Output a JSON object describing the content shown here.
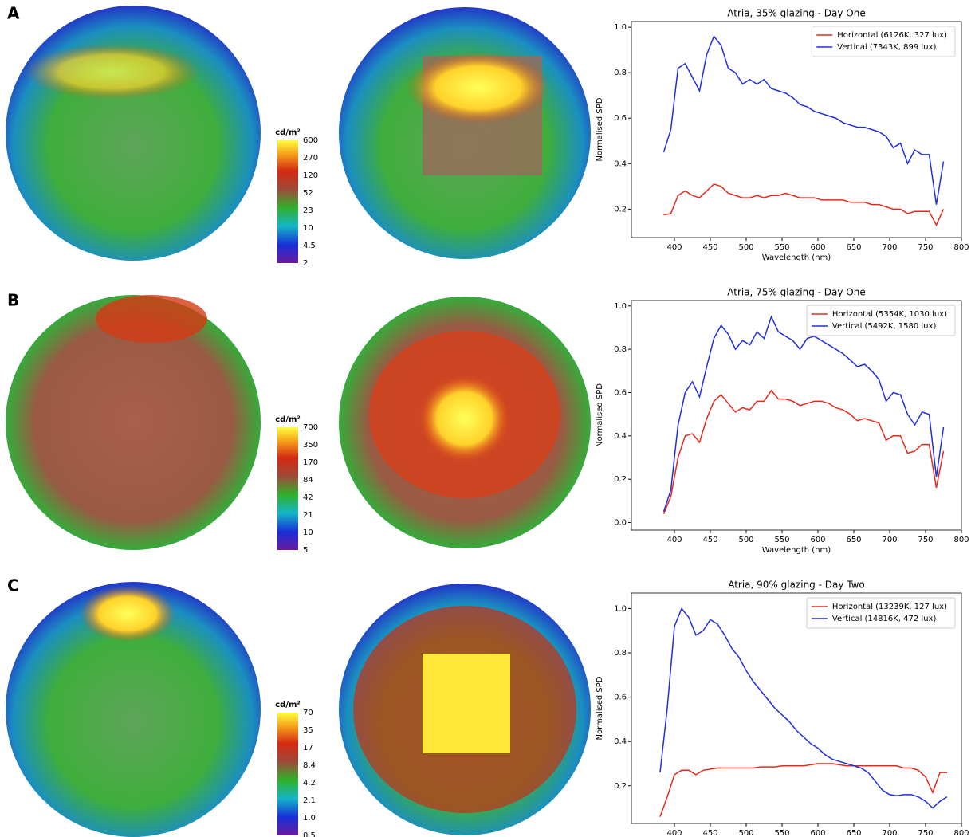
{
  "panels": [
    {
      "label": "A",
      "colorbar": {
        "unit": "cd/m²",
        "ticks": [
          "600",
          "270",
          "120",
          "52",
          "23",
          "10",
          "4.5",
          "2"
        ]
      }
    },
    {
      "label": "B",
      "colorbar": {
        "unit": "cd/m²",
        "ticks": [
          "700",
          "350",
          "170",
          "84",
          "42",
          "21",
          "10",
          "5"
        ]
      }
    },
    {
      "label": "C",
      "colorbar": {
        "unit": "cd/m²",
        "ticks": [
          "70",
          "35",
          "17",
          "8.4",
          "4.2",
          "2.1",
          "1.0",
          "0.5"
        ]
      }
    }
  ],
  "chart_data": [
    {
      "type": "line",
      "title": "Atria, 35% glazing - Day One",
      "x_label": "Wavelength (nm)",
      "y_label": "Normalised SPD",
      "legend": "upper right",
      "xlim": [
        340,
        800
      ],
      "ylim": [
        0.075,
        1.025
      ],
      "xticks": [
        400,
        450,
        500,
        550,
        600,
        650,
        700,
        750,
        800
      ],
      "yticks": [
        0.2,
        0.4,
        0.6,
        0.8,
        {
          "value": 1,
          "label": "1.0"
        }
      ],
      "x": [
        385,
        395,
        405,
        415,
        425,
        435,
        445,
        455,
        465,
        475,
        485,
        495,
        505,
        515,
        525,
        535,
        545,
        555,
        565,
        575,
        585,
        595,
        605,
        615,
        625,
        635,
        645,
        655,
        665,
        675,
        685,
        695,
        705,
        715,
        725,
        735,
        745,
        755,
        765,
        775
      ],
      "series": [
        {
          "name": "Horizontal (6126K, 327 lux)",
          "color": "#e8291c",
          "values": [
            0.175,
            0.18,
            0.26,
            0.28,
            0.26,
            0.25,
            0.28,
            0.31,
            0.3,
            0.27,
            0.26,
            0.25,
            0.25,
            0.26,
            0.25,
            0.26,
            0.26,
            0.27,
            0.26,
            0.25,
            0.25,
            0.25,
            0.24,
            0.24,
            0.24,
            0.24,
            0.23,
            0.23,
            0.23,
            0.22,
            0.22,
            0.21,
            0.2,
            0.2,
            0.18,
            0.19,
            0.19,
            0.19,
            0.13,
            0.2
          ]
        },
        {
          "name": "Vertical (7343K, 899 lux)",
          "color": "#1f2fe0",
          "values": [
            0.45,
            0.55,
            0.82,
            0.84,
            0.78,
            0.72,
            0.88,
            0.96,
            0.92,
            0.82,
            0.8,
            0.75,
            0.77,
            0.75,
            0.77,
            0.73,
            0.72,
            0.71,
            0.69,
            0.66,
            0.65,
            0.63,
            0.62,
            0.61,
            0.6,
            0.58,
            0.57,
            0.56,
            0.56,
            0.55,
            0.54,
            0.52,
            0.47,
            0.49,
            0.4,
            0.46,
            0.44,
            0.44,
            0.22,
            0.41
          ]
        }
      ]
    },
    {
      "type": "line",
      "title": "Atria, 75% glazing - Day One",
      "x_label": "Wavelength (nm)",
      "y_label": "Normalised SPD",
      "legend": "upper right",
      "xlim": [
        340,
        800
      ],
      "ylim": [
        -0.035,
        1.025
      ],
      "xticks": [
        400,
        450,
        500,
        550,
        600,
        650,
        700,
        750,
        800
      ],
      "yticks": [
        {
          "value": 0,
          "label": "0.0"
        },
        0.2,
        0.4,
        0.6,
        0.8,
        {
          "value": 1,
          "label": "1.0"
        }
      ],
      "x": [
        385,
        395,
        405,
        415,
        425,
        435,
        445,
        455,
        465,
        475,
        485,
        495,
        505,
        515,
        525,
        535,
        545,
        555,
        565,
        575,
        585,
        595,
        605,
        615,
        625,
        635,
        645,
        655,
        665,
        675,
        685,
        695,
        705,
        715,
        725,
        735,
        745,
        755,
        765,
        775
      ],
      "series": [
        {
          "name": "Horizontal (5354K, 1030 lux)",
          "color": "#e8291c",
          "values": [
            0.04,
            0.12,
            0.3,
            0.4,
            0.41,
            0.37,
            0.48,
            0.56,
            0.59,
            0.55,
            0.51,
            0.53,
            0.52,
            0.56,
            0.56,
            0.61,
            0.57,
            0.57,
            0.56,
            0.54,
            0.55,
            0.56,
            0.56,
            0.55,
            0.53,
            0.52,
            0.5,
            0.47,
            0.48,
            0.47,
            0.46,
            0.38,
            0.4,
            0.4,
            0.32,
            0.33,
            0.36,
            0.36,
            0.16,
            0.33
          ]
        },
        {
          "name": "Vertical (5492K, 1580 lux)",
          "color": "#1f2fe0",
          "values": [
            0.05,
            0.15,
            0.45,
            0.6,
            0.65,
            0.58,
            0.72,
            0.85,
            0.91,
            0.87,
            0.8,
            0.84,
            0.82,
            0.88,
            0.85,
            0.95,
            0.88,
            0.86,
            0.84,
            0.8,
            0.85,
            0.86,
            0.84,
            0.82,
            0.8,
            0.78,
            0.75,
            0.72,
            0.73,
            0.7,
            0.66,
            0.56,
            0.6,
            0.59,
            0.5,
            0.45,
            0.51,
            0.5,
            0.21,
            0.44
          ]
        }
      ]
    },
    {
      "type": "line",
      "title": "Atria, 90% glazing - Day Two",
      "x_label": "Wavelength (nm)",
      "y_label": "Normalised SPD",
      "legend": "upper right",
      "xlim": [
        340,
        800
      ],
      "ylim": [
        0.03,
        1.07
      ],
      "xticks": [
        400,
        450,
        500,
        550,
        600,
        650,
        700,
        750,
        800
      ],
      "yticks": [
        0.2,
        0.4,
        0.6,
        0.8,
        {
          "value": 1,
          "label": "1.0"
        }
      ],
      "x": [
        380,
        390,
        400,
        410,
        420,
        430,
        440,
        450,
        460,
        470,
        480,
        490,
        500,
        510,
        520,
        530,
        540,
        550,
        560,
        570,
        580,
        590,
        600,
        610,
        620,
        630,
        640,
        650,
        660,
        670,
        680,
        690,
        700,
        710,
        720,
        730,
        740,
        750,
        760,
        770,
        780
      ],
      "series": [
        {
          "name": "Horizontal (13239K, 127 lux)",
          "color": "#e8291c",
          "values": [
            0.06,
            0.15,
            0.25,
            0.27,
            0.27,
            0.25,
            0.27,
            0.275,
            0.28,
            0.28,
            0.28,
            0.28,
            0.28,
            0.28,
            0.285,
            0.285,
            0.285,
            0.29,
            0.29,
            0.29,
            0.29,
            0.295,
            0.3,
            0.3,
            0.3,
            0.295,
            0.29,
            0.29,
            0.29,
            0.29,
            0.29,
            0.29,
            0.29,
            0.29,
            0.28,
            0.28,
            0.27,
            0.24,
            0.17,
            0.26,
            0.26
          ]
        },
        {
          "name": "Vertical (14816K, 472 lux)",
          "color": "#1f2fe0",
          "values": [
            0.26,
            0.55,
            0.92,
            1.0,
            0.96,
            0.88,
            0.9,
            0.95,
            0.93,
            0.88,
            0.82,
            0.78,
            0.72,
            0.67,
            0.63,
            0.59,
            0.55,
            0.52,
            0.49,
            0.45,
            0.42,
            0.39,
            0.37,
            0.34,
            0.32,
            0.31,
            0.3,
            0.29,
            0.28,
            0.26,
            0.22,
            0.18,
            0.16,
            0.155,
            0.16,
            0.16,
            0.15,
            0.13,
            0.1,
            0.13,
            0.15
          ]
        }
      ]
    }
  ]
}
